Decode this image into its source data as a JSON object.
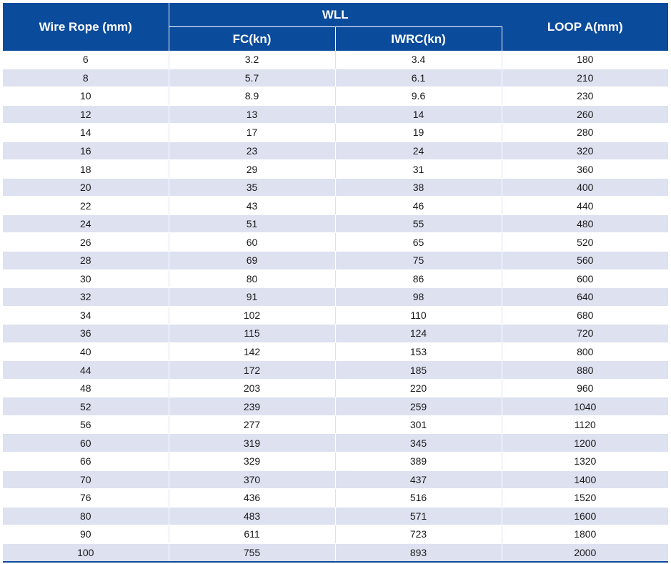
{
  "header": {
    "wire_rope": "Wire Rope (mm)",
    "wll": "WLL",
    "fc": "FC(kn)",
    "iwrc": "IWRC(kn)",
    "loop": "LOOP A(mm)"
  },
  "colors": {
    "header_bg": "#0a4b9c",
    "stripe": "#dde1f0"
  },
  "rows": [
    [
      "6",
      "3.2",
      "3.4",
      "180"
    ],
    [
      "8",
      "5.7",
      "6.1",
      "210"
    ],
    [
      "10",
      "8.9",
      "9.6",
      "230"
    ],
    [
      "12",
      "13",
      "14",
      "260"
    ],
    [
      "14",
      "17",
      "19",
      "280"
    ],
    [
      "16",
      "23",
      "24",
      "320"
    ],
    [
      "18",
      "29",
      "31",
      "360"
    ],
    [
      "20",
      "35",
      "38",
      "400"
    ],
    [
      "22",
      "43",
      "46",
      "440"
    ],
    [
      "24",
      "51",
      "55",
      "480"
    ],
    [
      "26",
      "60",
      "65",
      "520"
    ],
    [
      "28",
      "69",
      "75",
      "560"
    ],
    [
      "30",
      "80",
      "86",
      "600"
    ],
    [
      "32",
      "91",
      "98",
      "640"
    ],
    [
      "34",
      "102",
      "110",
      "680"
    ],
    [
      "36",
      "115",
      "124",
      "720"
    ],
    [
      "40",
      "142",
      "153",
      "800"
    ],
    [
      "44",
      "172",
      "185",
      "880"
    ],
    [
      "48",
      "203",
      "220",
      "960"
    ],
    [
      "52",
      "239",
      "259",
      "1040"
    ],
    [
      "56",
      "277",
      "301",
      "1120"
    ],
    [
      "60",
      "319",
      "345",
      "1200"
    ],
    [
      "66",
      "329",
      "389",
      "1320"
    ],
    [
      "70",
      "370",
      "437",
      "1400"
    ],
    [
      "76",
      "436",
      "516",
      "1520"
    ],
    [
      "80",
      "483",
      "571",
      "1600"
    ],
    [
      "90",
      "611",
      "723",
      "1800"
    ],
    [
      "100",
      "755",
      "893",
      "2000"
    ]
  ]
}
